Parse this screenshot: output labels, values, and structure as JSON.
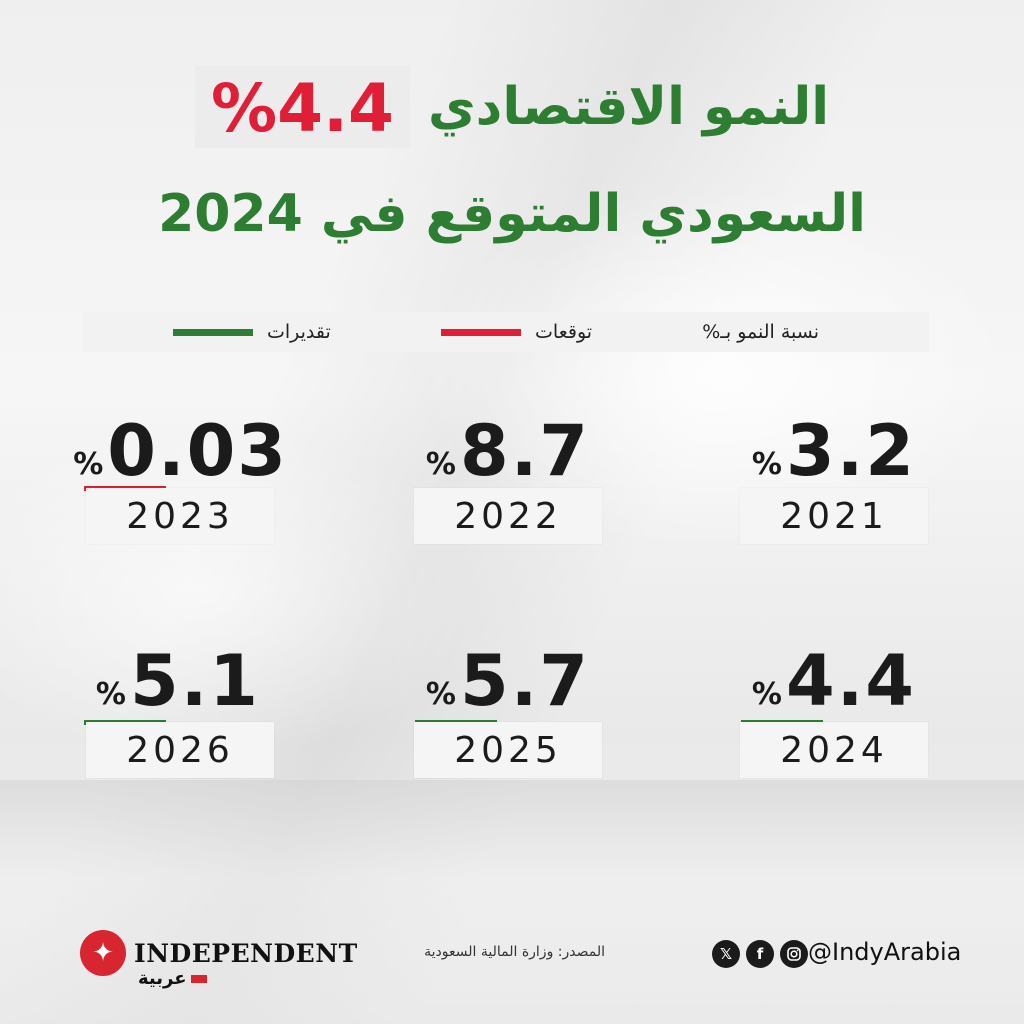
{
  "title": {
    "highlight": "%4.4",
    "line1": "النمو الاقتصادي",
    "line2": "السعودي المتوقع في 2024"
  },
  "legend": {
    "label": "نسبة النمو بـ%",
    "forecasts": "توقعات",
    "estimates": "تقديرات",
    "colors": {
      "forecasts": "#e01f37",
      "estimates": "#2d7d32"
    }
  },
  "chart_data": {
    "type": "table",
    "title": "",
    "items": [
      {
        "year": "2021",
        "value": "3.2",
        "pct": "%",
        "marker": "none"
      },
      {
        "year": "2022",
        "value": "8.7",
        "pct": "%",
        "marker": "none"
      },
      {
        "year": "2023",
        "value": "0.03",
        "pct": "%",
        "marker": "forecasts"
      },
      {
        "year": "2024",
        "value": "4.4",
        "pct": "%",
        "marker": "estimates"
      },
      {
        "year": "2025",
        "value": "5.7",
        "pct": "%",
        "marker": "estimates"
      },
      {
        "year": "2026",
        "value": "5.1",
        "pct": "%",
        "marker": "estimates"
      }
    ]
  },
  "footer": {
    "logo": "INDEPENDENT",
    "logo_sub": "عربية",
    "source": "المصدر: وزارة المالية السعودية",
    "handle": "@IndyArabia",
    "social_icons": [
      "x-icon",
      "facebook-icon",
      "instagram-icon"
    ]
  }
}
